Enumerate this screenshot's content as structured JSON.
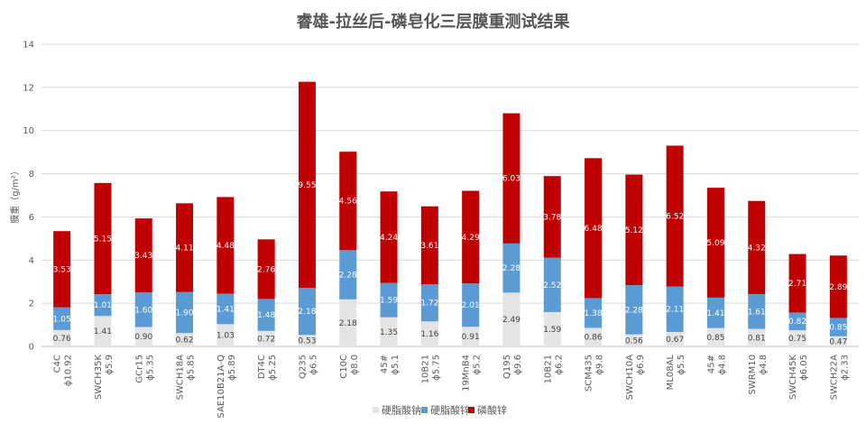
{
  "chart_data": {
    "type": "bar",
    "stacked": true,
    "title": "睿雄-拉丝后-磷皂化三层膜重测试结果",
    "ylabel": "膜重（g/m²）",
    "ylim": [
      0,
      14
    ],
    "yticks": [
      "0",
      "2",
      "4",
      "6",
      "8",
      "10",
      "12",
      "14"
    ],
    "grid": "horizontal",
    "legend_position": "bottom",
    "categories": [
      {
        "grade": "C4C",
        "size": "ϕ10.92"
      },
      {
        "grade": "SWCH35K",
        "size": "ϕ5.9"
      },
      {
        "grade": "GCr15",
        "size": "ϕ5.35"
      },
      {
        "grade": "SWCH18A",
        "size": "ϕ5.85"
      },
      {
        "grade": "SAE10B21A-Q",
        "size": "ϕ5.89"
      },
      {
        "grade": "DT4C",
        "size": "ϕ5.25"
      },
      {
        "grade": "Q235",
        "size": "ϕ6.5"
      },
      {
        "grade": "C10C",
        "size": "ϕ8.0"
      },
      {
        "grade": "45#",
        "size": "ϕ5.1"
      },
      {
        "grade": "10B21",
        "size": "ϕ5.75"
      },
      {
        "grade": "19MnB4",
        "size": "ϕ5.2"
      },
      {
        "grade": "Q195",
        "size": "ϕ9.6"
      },
      {
        "grade": "10B21",
        "size": "ϕ6.2"
      },
      {
        "grade": "SCM435",
        "size": "ϕ9.8"
      },
      {
        "grade": "SWCH10A",
        "size": "ϕ6.9"
      },
      {
        "grade": "ML08AL",
        "size": "ϕ5.5"
      },
      {
        "grade": "45#",
        "size": "ϕ4.8"
      },
      {
        "grade": "SWRM10",
        "size": "ϕ4.8"
      },
      {
        "grade": "SWCH45K",
        "size": "ϕ6.05"
      },
      {
        "grade": "SWCH22A",
        "size": "ϕ2.33"
      }
    ],
    "series": [
      {
        "name": "硬脂酸钠",
        "color": "#e4e4e4",
        "label_color": "#404040",
        "values": [
          0.76,
          1.41,
          0.9,
          0.62,
          1.03,
          0.72,
          0.53,
          2.18,
          1.35,
          1.16,
          0.91,
          2.49,
          1.59,
          0.86,
          0.56,
          0.67,
          0.85,
          0.81,
          0.75,
          0.47
        ],
        "labels": [
          "0.76",
          "1.41",
          "0.90",
          "0.62",
          "1.03",
          "0.72",
          "0.53",
          "2.18",
          "1.35",
          "1.16",
          "0.91",
          "2.49",
          "1.59",
          "0.86",
          "0.56",
          "0.67",
          "0.85",
          "0.81",
          "0.75",
          "0.47"
        ]
      },
      {
        "name": "硬脂酸锌",
        "color": "#5b9bd5",
        "label_color": "#ffffff",
        "values": [
          1.05,
          1.01,
          1.6,
          1.9,
          1.41,
          1.48,
          2.18,
          2.28,
          1.59,
          1.72,
          2.01,
          2.28,
          2.52,
          1.38,
          2.28,
          2.11,
          1.41,
          1.61,
          0.82,
          0.85
        ],
        "labels": [
          "1.05",
          "1.01",
          "1.60",
          "1.90",
          "1.41",
          "1.48",
          "2.18",
          "2.28",
          "1.59",
          "1.72",
          "2.01",
          "2.28",
          "2.52",
          "1.38",
          "2.28",
          "2.11",
          "1.41",
          "1.61",
          "0.82",
          "0.85"
        ]
      },
      {
        "name": "磷酸锌",
        "color": "#c00000",
        "label_color": "#ffffff",
        "values": [
          3.53,
          5.15,
          3.43,
          4.11,
          4.48,
          2.76,
          9.55,
          4.56,
          4.24,
          3.61,
          4.29,
          6.03,
          3.78,
          6.48,
          5.12,
          6.52,
          5.09,
          4.32,
          2.71,
          2.89
        ],
        "labels": [
          "3.53",
          "5.15",
          "3.43",
          "4.11",
          "4.48",
          "2.76",
          "9.55",
          "4.56",
          "4.24",
          "3.61",
          "4.29",
          "6.03",
          "3.78",
          "6.48",
          "5.12",
          "6.52",
          "5.09",
          "4.32",
          "2.71",
          "2.89"
        ]
      }
    ]
  }
}
